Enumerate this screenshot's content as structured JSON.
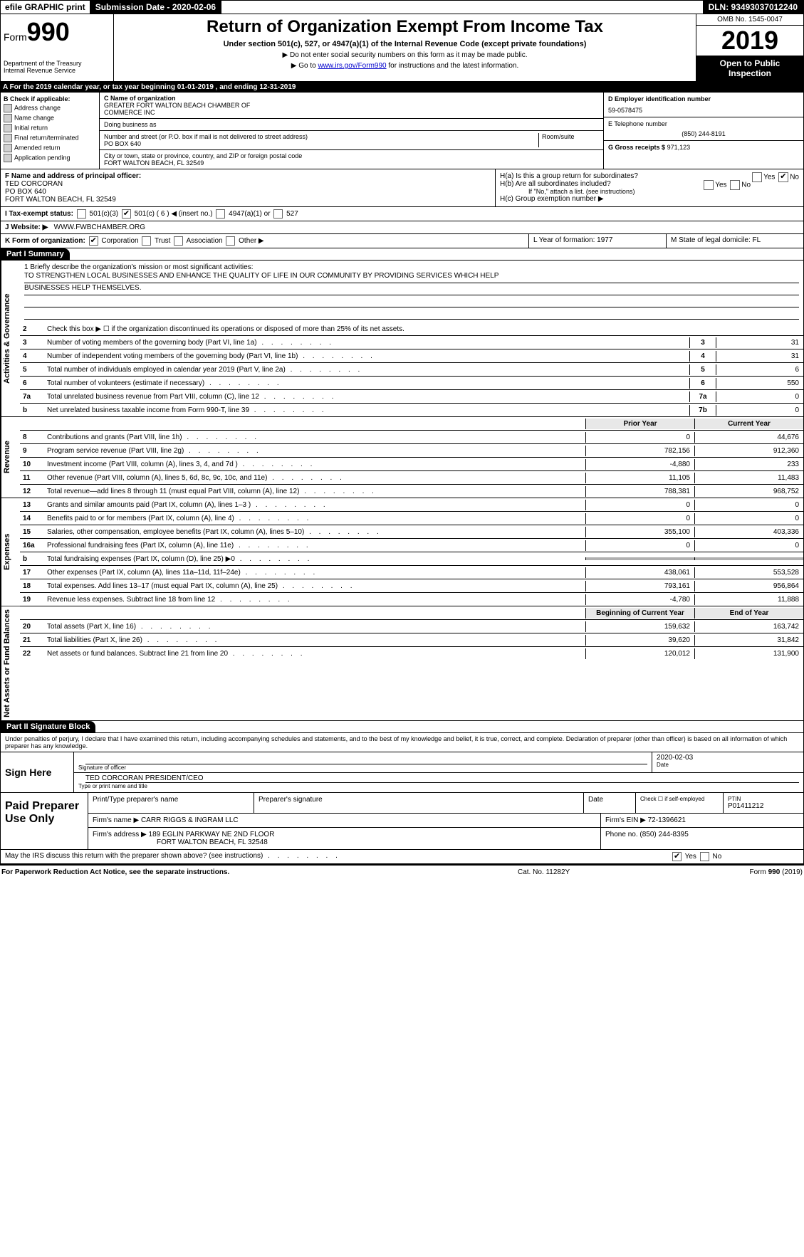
{
  "topbar": {
    "efile": "efile GRAPHIC print",
    "submission": "Submission Date - 2020-02-06",
    "dln": "DLN: 93493037012240"
  },
  "header": {
    "form_prefix": "Form",
    "form_number": "990",
    "dept1": "Department of the Treasury",
    "dept2": "Internal Revenue Service",
    "title": "Return of Organization Exempt From Income Tax",
    "subtitle": "Under section 501(c), 527, or 4947(a)(1) of the Internal Revenue Code (except private foundations)",
    "note1": "▶ Do not enter social security numbers on this form as it may be made public.",
    "note2_pre": "▶ Go to ",
    "note2_link": "www.irs.gov/Form990",
    "note2_post": " for instructions and the latest information.",
    "omb": "OMB No. 1545-0047",
    "year": "2019",
    "open": "Open to Public Inspection"
  },
  "row_a": "A   For the 2019 calendar year, or tax year beginning 01-01-2019       , and ending 12-31-2019",
  "col_b": {
    "title": "B Check if applicable:",
    "items": [
      "Address change",
      "Name change",
      "Initial return",
      "Final return/terminated",
      "Amended return",
      "Application pending"
    ]
  },
  "col_c": {
    "name_lbl": "C Name of organization",
    "name1": "GREATER FORT WALTON BEACH CHAMBER OF",
    "name2": "COMMERCE INC",
    "dba_lbl": "Doing business as",
    "addr_lbl": "Number and street (or P.O. box if mail is not delivered to street address)",
    "addr": "PO BOX 640",
    "room_lbl": "Room/suite",
    "city_lbl": "City or town, state or province, country, and ZIP or foreign postal code",
    "city": "FORT WALTON BEACH, FL  32549"
  },
  "col_d": {
    "ein_lbl": "D Employer identification number",
    "ein": "59-0578475",
    "tel_lbl": "E Telephone number",
    "tel": "(850) 244-8191",
    "gross_lbl": "G Gross receipts $",
    "gross": "971,123"
  },
  "officer": {
    "lbl": "F  Name and address of principal officer:",
    "name": "TED CORCORAN",
    "addr1": "PO BOX 640",
    "addr2": "FORT WALTON BEACH, FL  32549"
  },
  "h": {
    "a_lbl": "H(a)   Is this a group return for subordinates?",
    "b_lbl": "H(b)   Are all subordinates included?",
    "b_note": "If \"No,\" attach a list. (see instructions)",
    "c_lbl": "H(c)   Group exemption number ▶",
    "yes": "Yes",
    "no": "No"
  },
  "tax_status": {
    "lbl": "I    Tax-exempt status:",
    "o1": "501(c)(3)",
    "o2": "501(c) ( 6 ) ◀ (insert no.)",
    "o3": "4947(a)(1) or",
    "o4": "527"
  },
  "website": {
    "lbl": "J   Website: ▶",
    "val": "WWW.FWBCHAMBER.ORG"
  },
  "k": {
    "lbl": "K Form of organization:",
    "opts": [
      "Corporation",
      "Trust",
      "Association",
      "Other ▶"
    ]
  },
  "ly": {
    "l": "L Year of formation: 1977",
    "m": "M State of legal domicile: FL"
  },
  "part1": {
    "hdr": "Part I      Summary",
    "q1": "1  Briefly describe the organization's mission or most significant activities:",
    "mission1": "TO STRENGTHEN LOCAL BUSINESSES AND ENHANCE THE QUALITY OF LIFE IN OUR COMMUNITY BY PROVIDING SERVICES WHICH HELP",
    "mission2": "BUSINESSES HELP THEMSELVES.",
    "q2": "Check this box ▶ ☐ if the organization discontinued its operations or disposed of more than 25% of its net assets.",
    "side_act": "Activities & Governance",
    "side_rev": "Revenue",
    "side_exp": "Expenses",
    "side_net": "Net Assets or Fund Balances",
    "rows_act": [
      {
        "n": "3",
        "d": "Number of voting members of the governing body (Part VI, line 1a)",
        "b": "3",
        "v": "31"
      },
      {
        "n": "4",
        "d": "Number of independent voting members of the governing body (Part VI, line 1b)",
        "b": "4",
        "v": "31"
      },
      {
        "n": "5",
        "d": "Total number of individuals employed in calendar year 2019 (Part V, line 2a)",
        "b": "5",
        "v": "6"
      },
      {
        "n": "6",
        "d": "Total number of volunteers (estimate if necessary)",
        "b": "6",
        "v": "550"
      },
      {
        "n": "7a",
        "d": "Total unrelated business revenue from Part VIII, column (C), line 12",
        "b": "7a",
        "v": "0"
      },
      {
        "n": "b",
        "d": "Net unrelated business taxable income from Form 990-T, line 39",
        "b": "7b",
        "v": "0"
      }
    ],
    "hdr_prior": "Prior Year",
    "hdr_curr": "Current Year",
    "rows_rev": [
      {
        "n": "8",
        "d": "Contributions and grants (Part VIII, line 1h)",
        "p": "0",
        "c": "44,676"
      },
      {
        "n": "9",
        "d": "Program service revenue (Part VIII, line 2g)",
        "p": "782,156",
        "c": "912,360"
      },
      {
        "n": "10",
        "d": "Investment income (Part VIII, column (A), lines 3, 4, and 7d )",
        "p": "-4,880",
        "c": "233"
      },
      {
        "n": "11",
        "d": "Other revenue (Part VIII, column (A), lines 5, 6d, 8c, 9c, 10c, and 11e)",
        "p": "11,105",
        "c": "11,483"
      },
      {
        "n": "12",
        "d": "Total revenue—add lines 8 through 11 (must equal Part VIII, column (A), line 12)",
        "p": "788,381",
        "c": "968,752"
      }
    ],
    "rows_exp": [
      {
        "n": "13",
        "d": "Grants and similar amounts paid (Part IX, column (A), lines 1–3 )",
        "p": "0",
        "c": "0"
      },
      {
        "n": "14",
        "d": "Benefits paid to or for members (Part IX, column (A), line 4)",
        "p": "0",
        "c": "0"
      },
      {
        "n": "15",
        "d": "Salaries, other compensation, employee benefits (Part IX, column (A), lines 5–10)",
        "p": "355,100",
        "c": "403,336"
      },
      {
        "n": "16a",
        "d": "Professional fundraising fees (Part IX, column (A), line 11e)",
        "p": "0",
        "c": "0"
      },
      {
        "n": "b",
        "d": "Total fundraising expenses (Part IX, column (D), line 25) ▶0",
        "p": "",
        "c": "",
        "gray": true
      },
      {
        "n": "17",
        "d": "Other expenses (Part IX, column (A), lines 11a–11d, 11f–24e)",
        "p": "438,061",
        "c": "553,528"
      },
      {
        "n": "18",
        "d": "Total expenses. Add lines 13–17 (must equal Part IX, column (A), line 25)",
        "p": "793,161",
        "c": "956,864"
      },
      {
        "n": "19",
        "d": "Revenue less expenses. Subtract line 18 from line 12",
        "p": "-4,780",
        "c": "11,888"
      }
    ],
    "hdr_beg": "Beginning of Current Year",
    "hdr_end": "End of Year",
    "rows_net": [
      {
        "n": "20",
        "d": "Total assets (Part X, line 16)",
        "p": "159,632",
        "c": "163,742"
      },
      {
        "n": "21",
        "d": "Total liabilities (Part X, line 26)",
        "p": "39,620",
        "c": "31,842"
      },
      {
        "n": "22",
        "d": "Net assets or fund balances. Subtract line 21 from line 20",
        "p": "120,012",
        "c": "131,900"
      }
    ]
  },
  "part2": {
    "hdr": "Part II      Signature Block",
    "note": "Under penalties of perjury, I declare that I have examined this return, including accompanying schedules and statements, and to the best of my knowledge and belief, it is true, correct, and complete. Declaration of preparer (other than officer) is based on all information of which preparer has any knowledge.",
    "sign_here": "Sign Here",
    "sig_officer": "Signature of officer",
    "sig_date": "2020-02-03",
    "date_lbl": "Date",
    "typed": "TED CORCORAN  PRESIDENT/CEO",
    "typed_lbl": "Type or print name and title"
  },
  "paid": {
    "title": "Paid Preparer Use Only",
    "h1": "Print/Type preparer's name",
    "h2": "Preparer's signature",
    "h3": "Date",
    "h4_pre": "Check ☐ if self-employed",
    "h5": "PTIN",
    "ptin": "P01411212",
    "firm_lbl": "Firm's name    ▶",
    "firm": "CARR RIGGS & INGRAM LLC",
    "ein_lbl": "Firm's EIN ▶",
    "ein": "72-1396621",
    "addr_lbl": "Firm's address ▶",
    "addr1": "189 EGLIN PARKWAY NE 2ND FLOOR",
    "addr2": "FORT WALTON BEACH, FL  32548",
    "phone_lbl": "Phone no.",
    "phone": "(850) 244-8395"
  },
  "discuss": {
    "q": "May the IRS discuss this return with the preparer shown above? (see instructions)",
    "yes": "Yes",
    "no": "No"
  },
  "footer": {
    "l": "For Paperwork Reduction Act Notice, see the separate instructions.",
    "c": "Cat. No. 11282Y",
    "r": "Form 990 (2019)"
  }
}
